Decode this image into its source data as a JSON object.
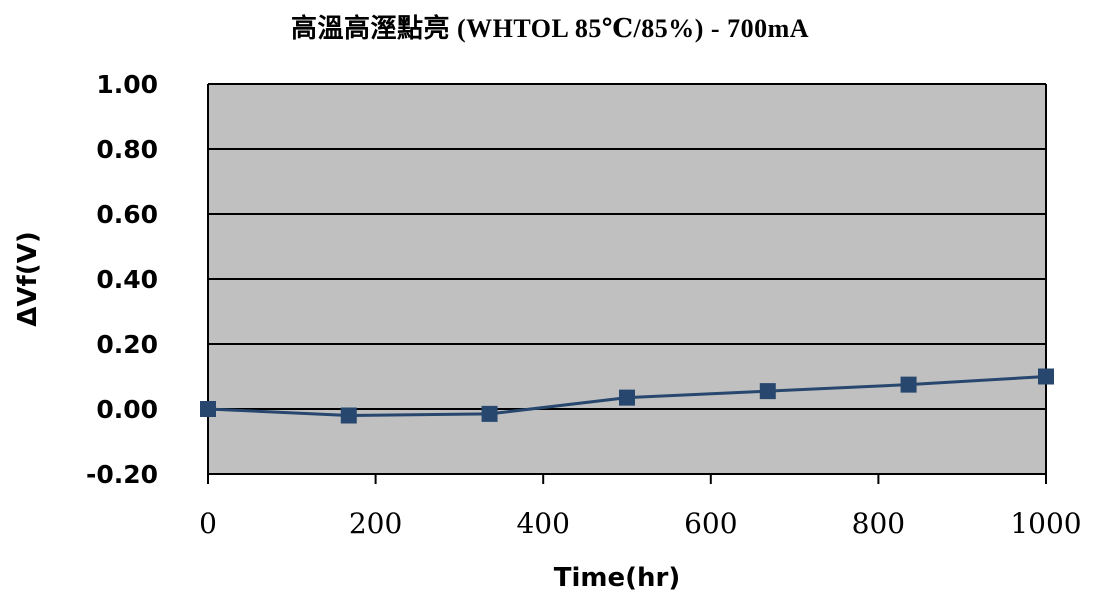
{
  "chart_data": {
    "type": "line",
    "title": "高溫高溼點亮 (WHTOL 85℃/85%) - 700mA",
    "xlabel": "Time(hr)",
    "ylabel": "ΔVf(V)",
    "xlim": [
      0,
      1000
    ],
    "ylim": [
      -0.2,
      1.0
    ],
    "xticks": [
      "0",
      "200",
      "400",
      "600",
      "800",
      "1000"
    ],
    "yticks": [
      "1.00",
      "0.80",
      "0.60",
      "0.40",
      "0.20",
      "0.00",
      "-0.20"
    ],
    "grid": true,
    "legend": "none",
    "series": [
      {
        "x": [
          0,
          168,
          336,
          500,
          668,
          836,
          1000
        ],
        "y": [
          0.0,
          -0.02,
          -0.015,
          0.035,
          0.055,
          0.075,
          0.1
        ]
      }
    ],
    "colors": {
      "plot_background": "#c0c0c0",
      "line": "#27476e",
      "marker": "#27476e",
      "gridline": "#000000"
    }
  }
}
